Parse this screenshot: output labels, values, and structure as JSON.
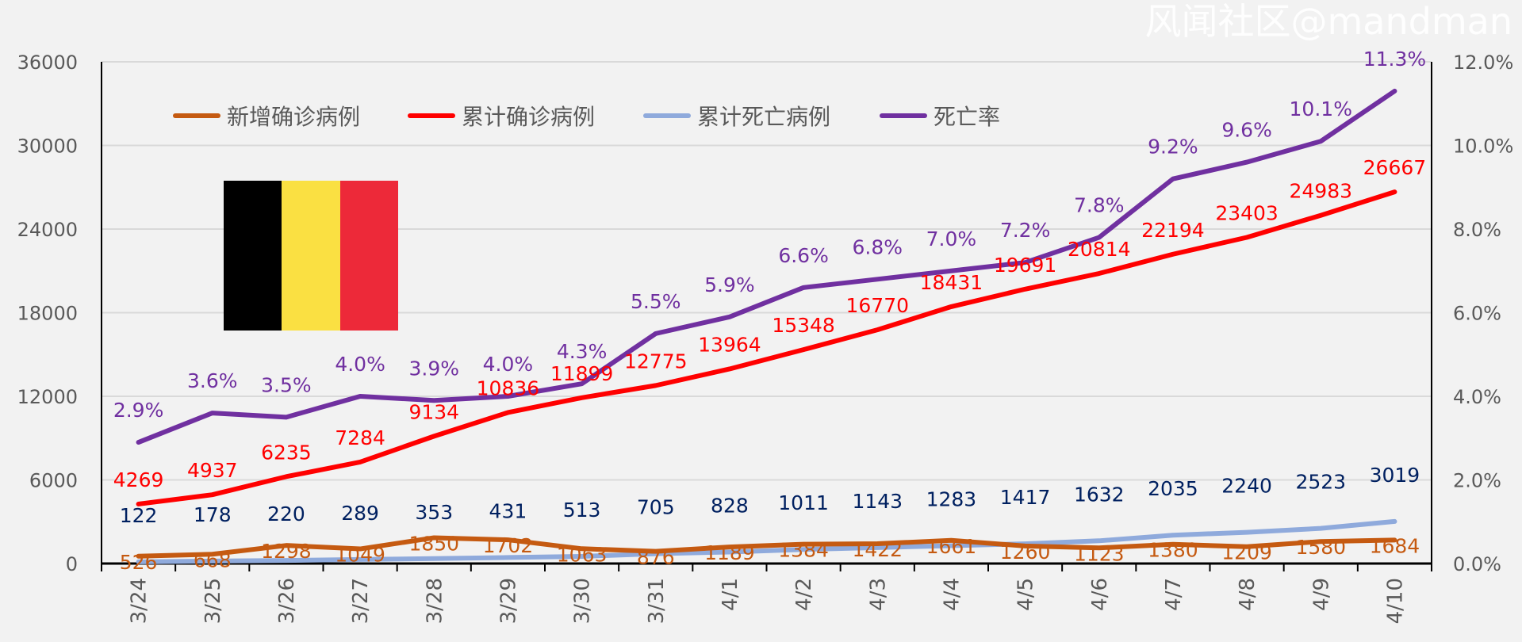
{
  "chart_data": {
    "type": "line",
    "categories": [
      "3/24",
      "3/25",
      "3/26",
      "3/27",
      "3/28",
      "3/29",
      "3/30",
      "3/31",
      "4/1",
      "4/2",
      "4/3",
      "4/4",
      "4/5",
      "4/6",
      "4/7",
      "4/8",
      "4/9",
      "4/10"
    ],
    "series": [
      {
        "name": "新增确诊病例",
        "axis": "left",
        "color": "#c55a11",
        "values": [
          526,
          668,
          1298,
          1049,
          1850,
          1702,
          1063,
          876,
          1189,
          1384,
          1422,
          1661,
          1260,
          1123,
          1380,
          1209,
          1580,
          1684
        ]
      },
      {
        "name": "累计确诊病例",
        "axis": "left",
        "color": "#ff0000",
        "values": [
          4269,
          4937,
          6235,
          7284,
          9134,
          10836,
          11899,
          12775,
          13964,
          15348,
          16770,
          18431,
          19691,
          20814,
          22194,
          23403,
          24983,
          26667
        ]
      },
      {
        "name": "累计死亡病例",
        "axis": "left",
        "color": "#8faadc",
        "label_color": "#002060",
        "values": [
          122,
          178,
          220,
          289,
          353,
          431,
          513,
          705,
          828,
          1011,
          1143,
          1283,
          1417,
          1632,
          2035,
          2240,
          2523,
          3019
        ]
      },
      {
        "name": "死亡率",
        "axis": "right",
        "color": "#7030a0",
        "values": [
          2.9,
          3.6,
          3.5,
          4.0,
          3.9,
          4.0,
          4.3,
          5.5,
          5.9,
          6.6,
          6.8,
          7.0,
          7.2,
          7.8,
          9.2,
          9.6,
          10.1,
          11.3
        ],
        "labels": [
          "2.9%",
          "3.6%",
          "3.5%",
          "4.0%",
          "3.9%",
          "4.0%",
          "4.3%",
          "5.5%",
          "5.9%",
          "6.6%",
          "6.8%",
          "7.0%",
          "7.2%",
          "7.8%",
          "9.2%",
          "9.6%",
          "10.1%",
          "11.3%"
        ]
      }
    ],
    "y_left": {
      "range": [
        0,
        36000
      ],
      "ticks": [
        "0",
        "6000",
        "12000",
        "18000",
        "24000",
        "30000",
        "36000"
      ]
    },
    "y_right": {
      "range": [
        0,
        12
      ],
      "ticks": [
        "0.0%",
        "2.0%",
        "4.0%",
        "6.0%",
        "8.0%",
        "10.0%",
        "12.0%"
      ]
    },
    "grid": true,
    "legend_position": "top-left",
    "title": ""
  },
  "flag_colors": [
    "#000000",
    "#fae042",
    "#ed2939"
  ],
  "watermark": "风闻社区@mandman"
}
